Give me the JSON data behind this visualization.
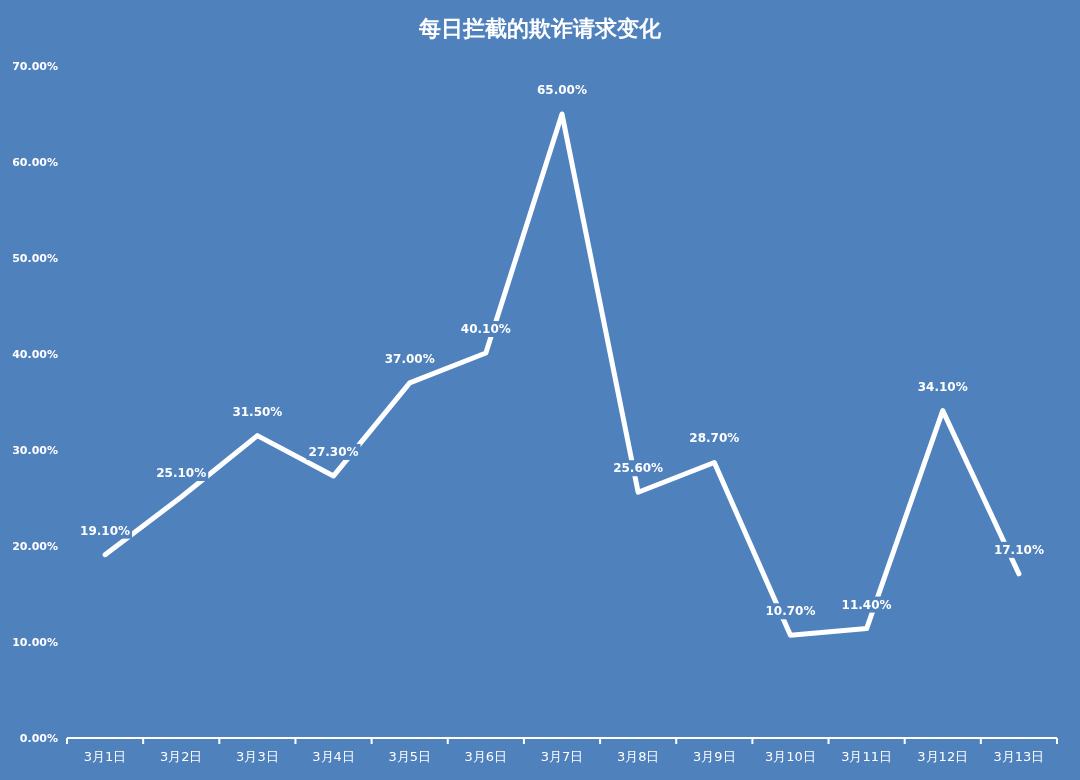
{
  "chart_data": {
    "type": "line",
    "title": "每日拦截的欺诈请求变化",
    "categories": [
      "3月1日",
      "3月2日",
      "3月3日",
      "3月4日",
      "3月5日",
      "3月6日",
      "3月7日",
      "3月8日",
      "3月9日",
      "3月10日",
      "3月11日",
      "3月12日",
      "3月13日"
    ],
    "series": [
      {
        "color": "#ffffff",
        "values": [
          19.1,
          25.1,
          31.5,
          27.3,
          37.0,
          40.1,
          65.0,
          25.6,
          28.7,
          10.7,
          11.4,
          34.1,
          17.1
        ],
        "value_labels": [
          "19.10%",
          "25.10%",
          "31.50%",
          "27.30%",
          "37.00%",
          "40.10%",
          "65.00%",
          "25.60%",
          "28.70%",
          "10.70%",
          "11.40%",
          "34.10%",
          "17.10%"
        ]
      }
    ],
    "ylim": [
      0,
      70
    ],
    "yticks": [
      {
        "value": 0,
        "label": "0.00%"
      },
      {
        "value": 10,
        "label": "10.00%"
      },
      {
        "value": 20,
        "label": "20.00%"
      },
      {
        "value": 30,
        "label": "30.00%"
      },
      {
        "value": 40,
        "label": "40.00%"
      },
      {
        "value": 50,
        "label": "50.00%"
      },
      {
        "value": 60,
        "label": "60.00%"
      },
      {
        "value": 70,
        "label": "70.00%"
      }
    ],
    "grid": false,
    "marker": "none",
    "line_style": "solid"
  }
}
